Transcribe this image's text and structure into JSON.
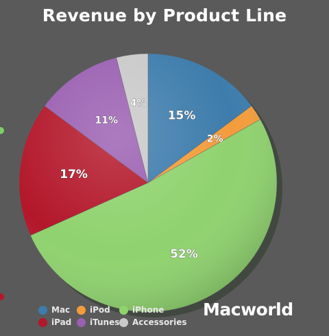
{
  "chart_data": {
    "type": "pie",
    "title": "Revenue by Product Line",
    "categories": [
      "Mac",
      "iPod",
      "iPhone",
      "iPad",
      "iTunes",
      "Accessories"
    ],
    "values": [
      15,
      2,
      52,
      17,
      11,
      4
    ],
    "labels": [
      "15%",
      "2%",
      "52%",
      "17%",
      "11%",
      "4%"
    ],
    "colors": [
      "#3d7cac",
      "#f39c3c",
      "#8fd26e",
      "#b3172a",
      "#9a5fb1",
      "#c9c9c9"
    ],
    "legend_position": "bottom-left",
    "start": "top, clockwise"
  },
  "brand": {
    "logo_text": "Macworld"
  },
  "background_color": "#5a5a5a"
}
